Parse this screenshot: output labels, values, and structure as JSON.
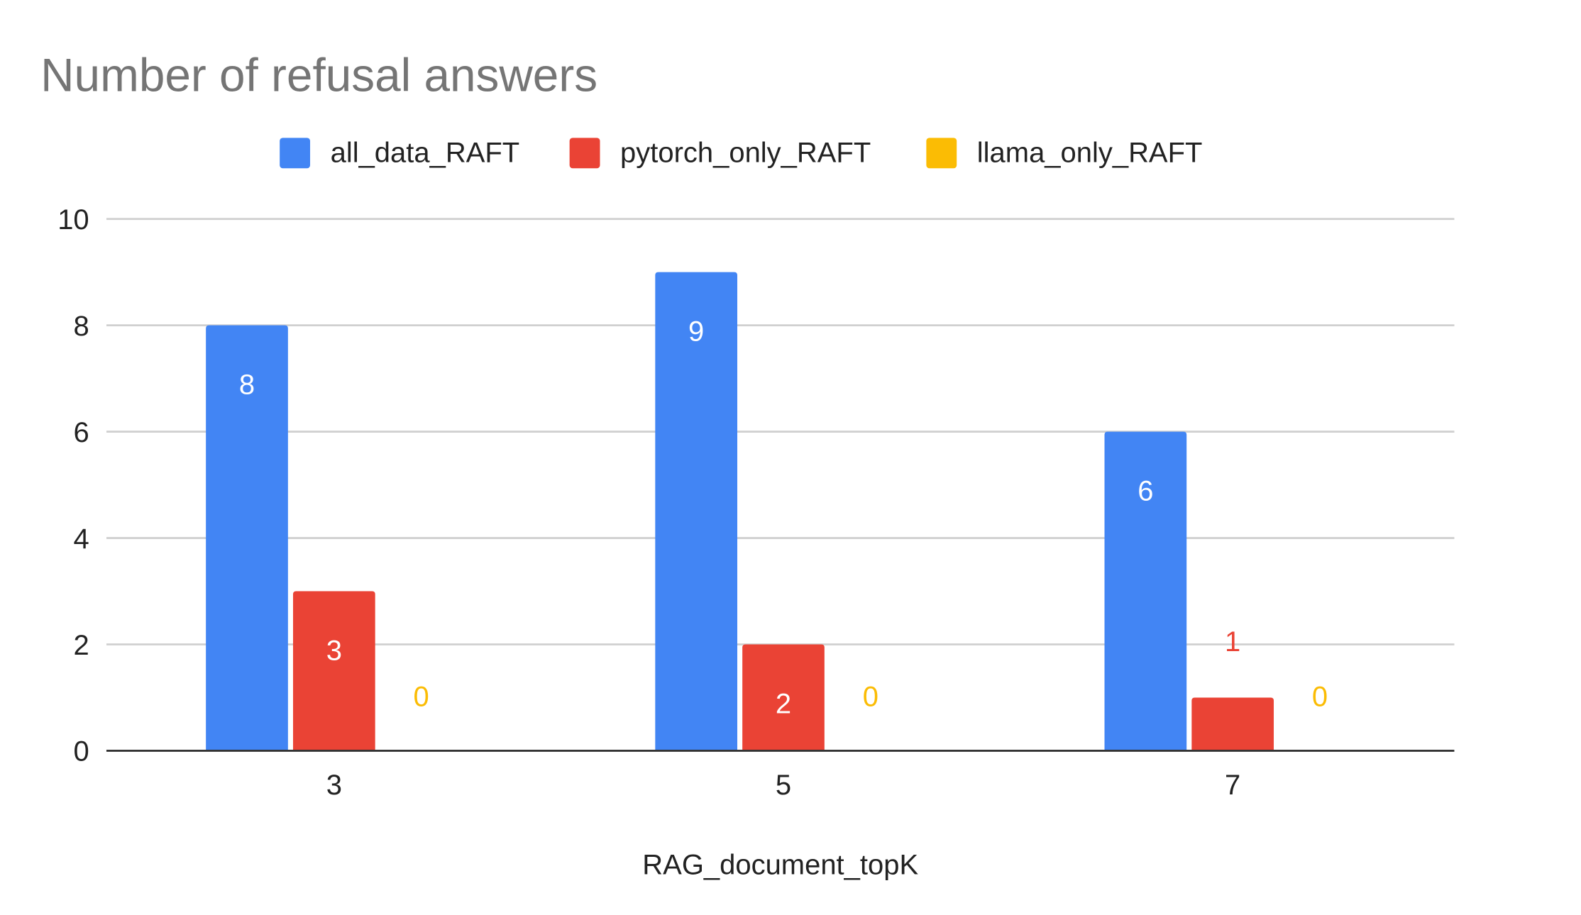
{
  "chart_data": {
    "type": "bar",
    "title": "Number of refusal answers",
    "xlabel": "RAG_document_topK",
    "ylabel": "",
    "categories": [
      "3",
      "5",
      "7"
    ],
    "series": [
      {
        "name": "all_data_RAFT",
        "values": [
          8,
          9,
          6
        ],
        "color": "#4285F4"
      },
      {
        "name": "pytorch_only_RAFT",
        "values": [
          3,
          2,
          1
        ],
        "color": "#EA4335"
      },
      {
        "name": "llama_only_RAFT",
        "values": [
          0,
          0,
          0
        ],
        "color": "#FBBC04"
      }
    ],
    "ylim": [
      0,
      10
    ],
    "yticks": [
      "0",
      "2",
      "4",
      "6",
      "8",
      "10"
    ],
    "grid": true,
    "legend_position": "top",
    "data_labels": true
  }
}
